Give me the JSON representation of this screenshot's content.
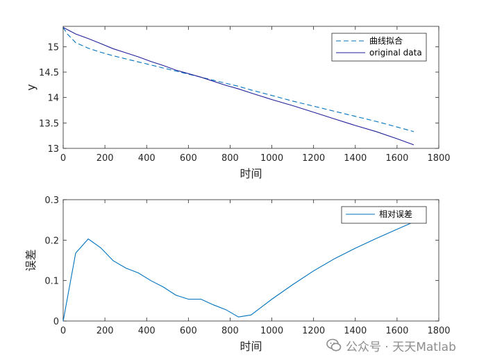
{
  "chart_data": [
    {
      "type": "line",
      "title": "",
      "xlabel": "时间",
      "ylabel": "y",
      "xlim": [
        0,
        1800
      ],
      "ylim": [
        13,
        15.4
      ],
      "xticks": [
        0,
        200,
        400,
        600,
        800,
        1000,
        1200,
        1400,
        1600,
        1800
      ],
      "yticks": [
        13,
        13.5,
        14,
        14.5,
        15
      ],
      "legend_position": "top-right",
      "series": [
        {
          "name": "曲线拟合",
          "color": "#0072BD",
          "style": "dashed",
          "x": [
            0,
            20,
            60,
            120,
            180,
            240,
            300,
            360,
            420,
            480,
            540,
            600,
            660,
            720,
            780,
            840,
            900,
            1000,
            1100,
            1200,
            1300,
            1400,
            1500,
            1600,
            1680
          ],
          "y": [
            15.38,
            15.25,
            15.08,
            14.97,
            14.89,
            14.82,
            14.76,
            14.7,
            14.64,
            14.58,
            14.52,
            14.46,
            14.4,
            14.34,
            14.28,
            14.22,
            14.15,
            14.04,
            13.93,
            13.83,
            13.73,
            13.63,
            13.53,
            13.42,
            13.33
          ]
        },
        {
          "name": "original data",
          "color": "#1f1f99",
          "style": "solid",
          "x": [
            0,
            60,
            120,
            180,
            240,
            300,
            360,
            420,
            480,
            540,
            600,
            660,
            720,
            780,
            840,
            900,
            1000,
            1100,
            1200,
            1300,
            1400,
            1500,
            1600,
            1680
          ],
          "y": [
            15.38,
            15.25,
            15.16,
            15.06,
            14.96,
            14.88,
            14.8,
            14.71,
            14.63,
            14.54,
            14.47,
            14.4,
            14.32,
            14.24,
            14.17,
            14.09,
            13.96,
            13.84,
            13.71,
            13.58,
            13.45,
            13.33,
            13.19,
            13.07
          ]
        }
      ]
    },
    {
      "type": "line",
      "title": "",
      "xlabel": "时间",
      "ylabel": "误差",
      "xlim": [
        0,
        1800
      ],
      "ylim": [
        0,
        0.3
      ],
      "xticks": [
        0,
        200,
        400,
        600,
        800,
        1000,
        1200,
        1400,
        1600,
        1800
      ],
      "yticks": [
        0,
        0.1,
        0.2,
        0.3
      ],
      "legend_position": "top-right",
      "series": [
        {
          "name": "相对误差",
          "color": "#0072BD",
          "style": "solid",
          "x": [
            0,
            60,
            120,
            180,
            240,
            300,
            360,
            420,
            480,
            540,
            600,
            660,
            720,
            780,
            840,
            900,
            1000,
            1100,
            1200,
            1300,
            1400,
            1500,
            1600,
            1680
          ],
          "y": [
            0,
            0.168,
            0.203,
            0.181,
            0.149,
            0.131,
            0.119,
            0.1,
            0.084,
            0.064,
            0.054,
            0.054,
            0.04,
            0.028,
            0.01,
            0.015,
            0.054,
            0.09,
            0.124,
            0.154,
            0.18,
            0.204,
            0.227,
            0.245
          ]
        }
      ]
    }
  ],
  "watermark": {
    "icon": "wechat-icon",
    "text": "公众号 · 天天Matlab"
  }
}
